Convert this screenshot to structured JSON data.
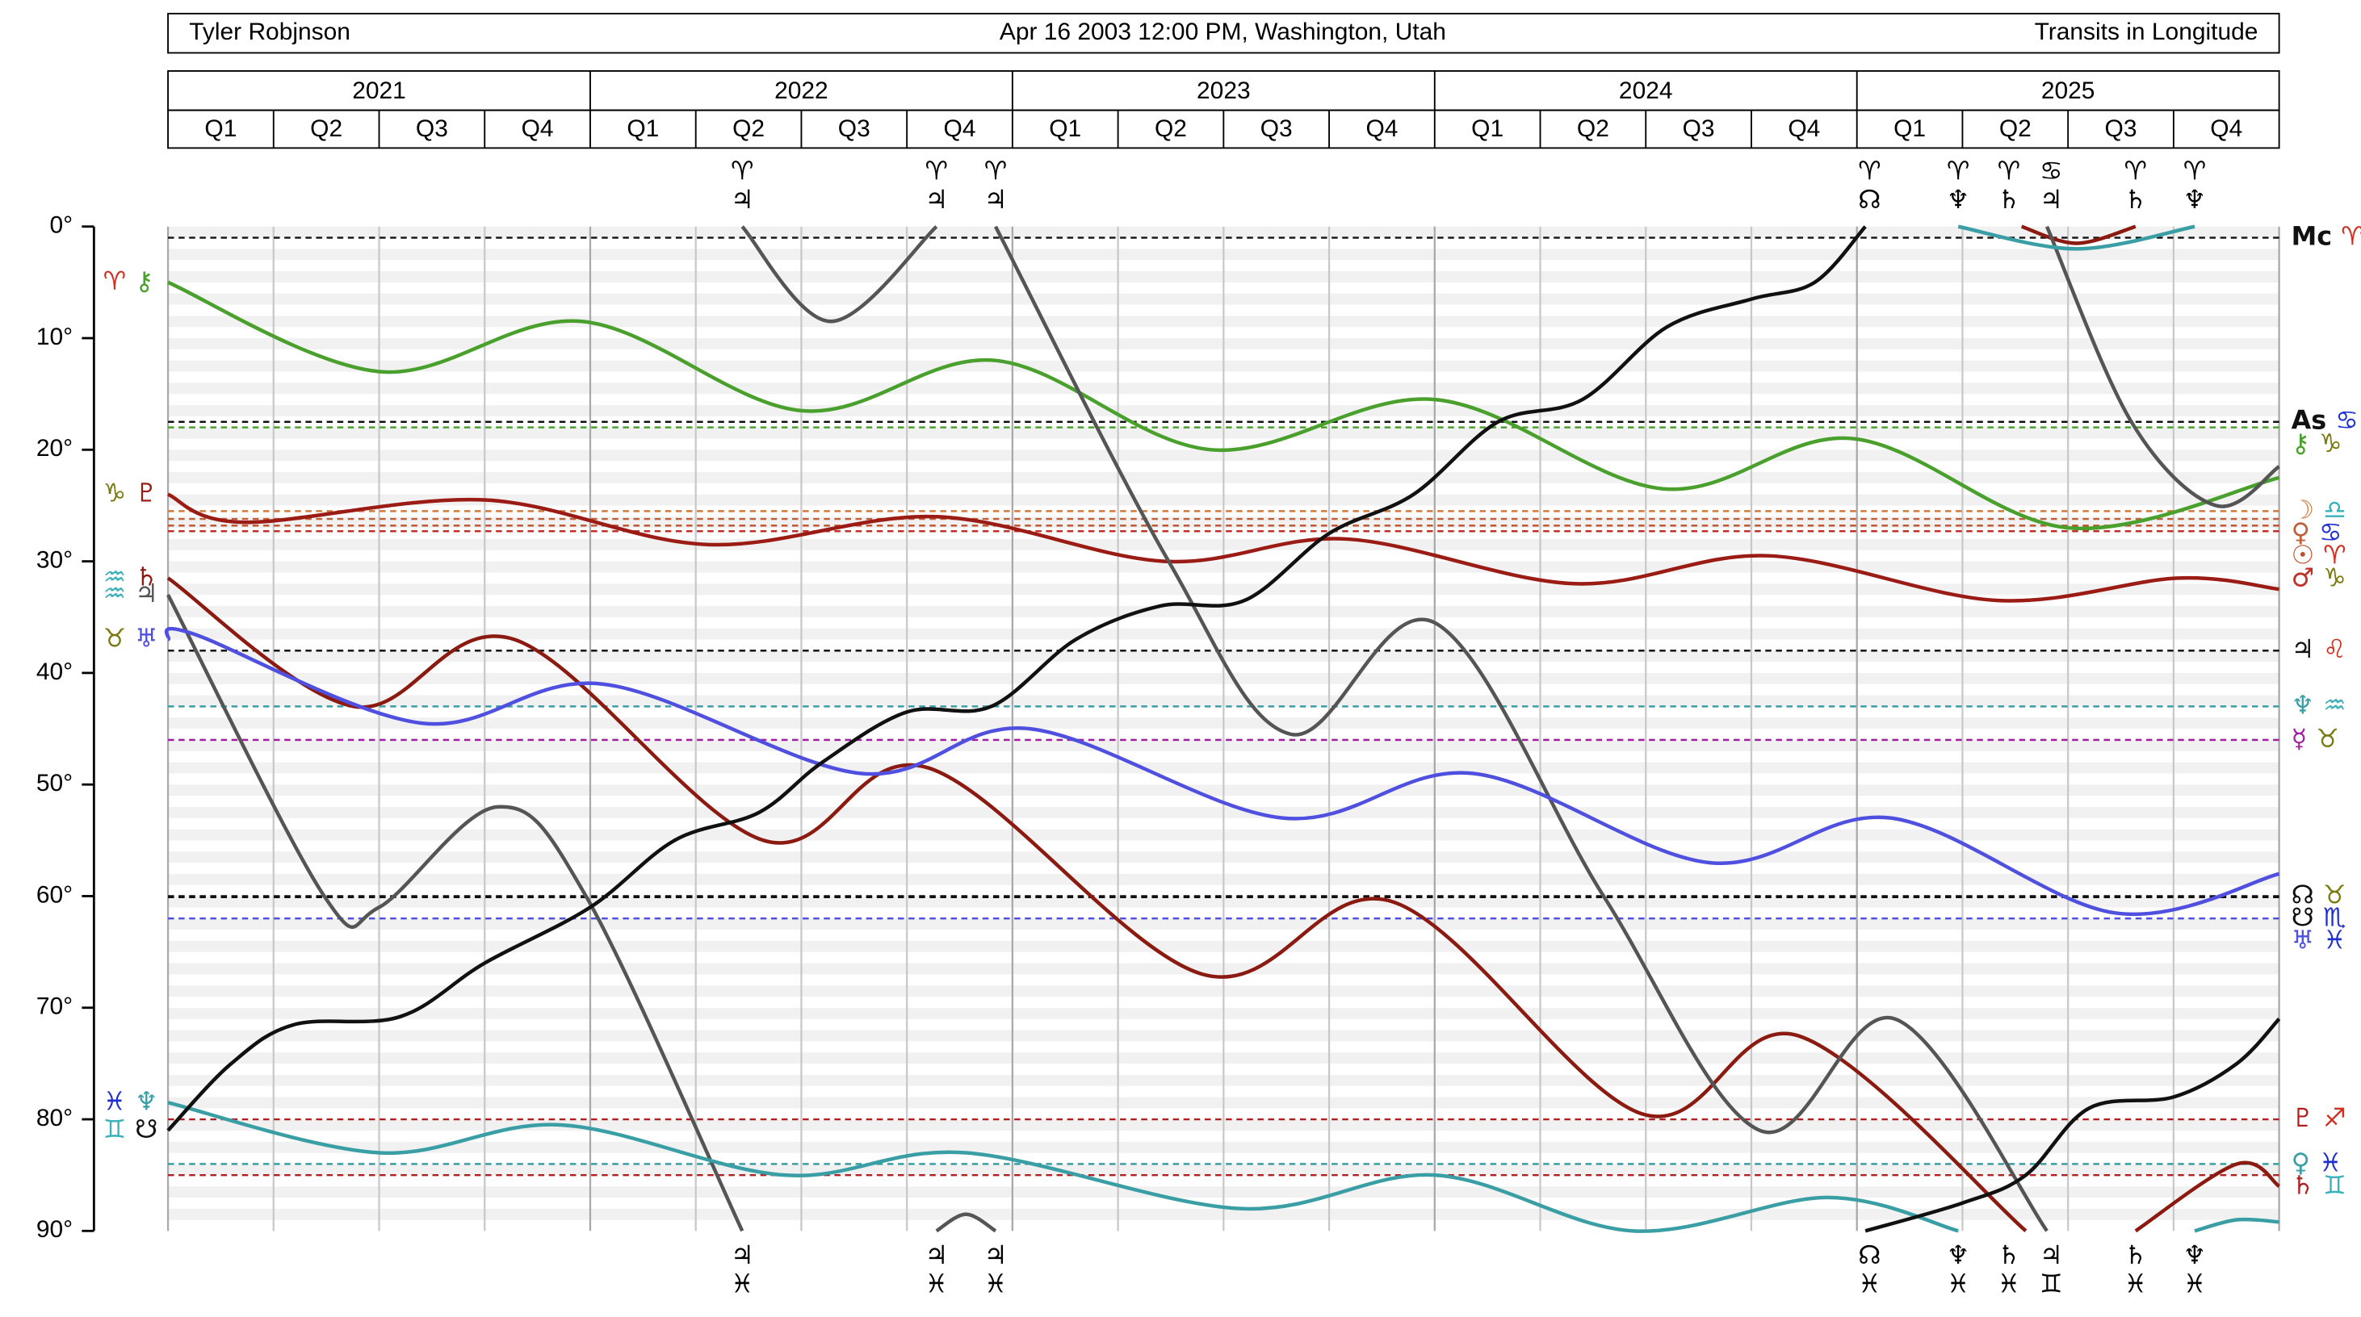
{
  "chart_data": {
    "type": "line",
    "header": {
      "left": "Tyler Robjnson",
      "center": "Apr 16 2003 12:00 PM, Washington, Utah",
      "right": "Transits in Longitude"
    },
    "years": [
      "2021",
      "2022",
      "2023",
      "2024",
      "2025"
    ],
    "quarters": [
      "Q1",
      "Q2",
      "Q3",
      "Q4",
      "Q1",
      "Q2",
      "Q3",
      "Q4",
      "Q1",
      "Q2",
      "Q3",
      "Q4",
      "Q1",
      "Q2",
      "Q3",
      "Q4",
      "Q1",
      "Q2",
      "Q3",
      "Q4"
    ],
    "xlim": [
      2021,
      2026
    ],
    "ylim": [
      0,
      90
    ],
    "y_inverted": true,
    "yticks": [
      {
        "value": 0,
        "label": "0°"
      },
      {
        "value": 10,
        "label": "10°"
      },
      {
        "value": 20,
        "label": "20°"
      },
      {
        "value": 30,
        "label": "30°"
      },
      {
        "value": 40,
        "label": "40°"
      },
      {
        "value": 50,
        "label": "50°"
      },
      {
        "value": 60,
        "label": "60°"
      },
      {
        "value": 70,
        "label": "70°"
      },
      {
        "value": 80,
        "label": "80°"
      },
      {
        "value": 90,
        "label": "90°"
      }
    ],
    "series": [
      {
        "sign": "♈",
        "body": "⚷",
        "sign_color": "#d03020",
        "color": "#4aa02c",
        "x": [
          2021.0,
          2021.5,
          2021.98,
          2022.5,
          2022.96,
          2023.47,
          2024.0,
          2024.54,
          2024.99,
          2025.5,
          2026.0
        ],
        "values": [
          5,
          13,
          8.5,
          16.5,
          12,
          20,
          15.5,
          23.5,
          19,
          27,
          22.5
        ]
      },
      {
        "sign": "♑",
        "body": "♇",
        "sign_color": "#7a7a10",
        "color": "#9b1c14",
        "x": [
          2021.0,
          2021.18,
          2021.75,
          2022.28,
          2022.82,
          2023.36,
          2023.79,
          2024.33,
          2024.79,
          2025.33,
          2025.76,
          2026.0
        ],
        "values": [
          24,
          26.5,
          24.5,
          28.5,
          26,
          30,
          28,
          32,
          29.5,
          33.5,
          31.5,
          32.5
        ]
      },
      {
        "sign": "♒",
        "body": "♄",
        "sign_color": "#3ab0b8",
        "color": "#8b1a10",
        "x": [
          2021.0,
          2021.44,
          2021.82,
          2022.41,
          2022.8,
          2023.45,
          2023.9,
          2024.49,
          2024.86,
          2025.4,
          null,
          2025.39,
          2025.52,
          2025.66,
          null,
          2025.66,
          2025.9,
          2026.0
        ],
        "values": [
          31.5,
          43,
          37,
          55,
          48.5,
          67,
          60.5,
          79.5,
          72.5,
          90,
          null,
          0,
          1.5,
          0,
          null,
          90,
          84,
          86
        ]
      },
      {
        "sign": "♒",
        "body": "♃",
        "sign_color": "#3ab0b8",
        "color": "#555555",
        "x": [
          2021.0,
          2021.37,
          2021.5,
          2021.78,
          2021.99,
          2022.36,
          null,
          2022.36,
          2022.57,
          2022.82,
          null,
          2022.82,
          2022.89,
          2022.96,
          null,
          2022.96,
          2023.37,
          2023.66,
          2024.0,
          2024.4,
          2024.77,
          2025.09,
          2025.45,
          null,
          2025.45,
          2025.65,
          2025.85,
          2026.0
        ],
        "values": [
          33,
          60,
          61,
          52,
          60,
          90,
          null,
          0,
          8.5,
          0,
          null,
          90,
          88.5,
          90,
          null,
          0,
          30,
          45.5,
          35.5,
          60,
          81,
          71,
          90,
          null,
          0,
          17.5,
          25,
          21.5
        ]
      },
      {
        "sign": "♉",
        "body": "♅",
        "sign_color": "#7a7a10",
        "color": "#5050e0",
        "x": [
          2021.0,
          2021.06,
          2021.6,
          2022.03,
          2022.64,
          2023.04,
          2023.64,
          2024.09,
          2024.65,
          2025.08,
          2025.61,
          2026.0
        ],
        "values": [
          37,
          36.5,
          44.5,
          41,
          49,
          45,
          53,
          49,
          57,
          53,
          61.5,
          58
        ]
      },
      {
        "sign": "♓",
        "body": "♆",
        "sign_color": "#2030d0",
        "color": "#3a9ea5",
        "x": [
          2021.0,
          2021.5,
          2021.93,
          2022.46,
          2022.89,
          2023.54,
          2024.0,
          2024.47,
          2024.93,
          2025.24,
          null,
          2025.24,
          2025.52,
          2025.8,
          null,
          2025.8,
          2025.9,
          2026.0
        ],
        "values": [
          78.5,
          83,
          80.5,
          85,
          83,
          88,
          85,
          90,
          87,
          90,
          null,
          0,
          2,
          0,
          null,
          90,
          89,
          89.2
        ]
      },
      {
        "sign": "♊",
        "body": "☋",
        "sign_color": "#3ab0b8",
        "color": "#111111",
        "x": [
          2021.0,
          2021.15,
          2021.3,
          2021.55,
          2021.75,
          2022.0,
          2022.2,
          2022.4,
          2022.55,
          2022.75,
          2022.95,
          2023.15,
          2023.35,
          2023.55,
          2023.75,
          2023.95,
          2024.15,
          2024.35,
          2024.55,
          2024.75,
          2024.9,
          2025.02,
          null,
          2025.02,
          2025.25,
          2025.4,
          2025.55,
          2025.75,
          2025.9,
          2026.0
        ],
        "values": [
          81,
          75,
          71.5,
          70.8,
          66,
          61,
          55,
          52.5,
          48,
          43.5,
          43,
          37,
          34,
          33.5,
          27.5,
          24,
          17.5,
          15.5,
          9,
          6.5,
          5,
          0,
          null,
          90,
          87.5,
          85,
          79,
          78,
          75,
          71
        ]
      }
    ],
    "reference_lines": [
      {
        "value": 1,
        "body": "Mc",
        "sign": "♈",
        "color": "#111111",
        "sign_color": "#d03020"
      },
      {
        "value": 17.5,
        "body": "As",
        "sign": "♋",
        "color": "#111111",
        "sign_color": "#2030d0"
      },
      {
        "value": 18,
        "body": "⚷",
        "sign": "♑",
        "color": "#4aa02c",
        "sign_color": "#7a7a10"
      },
      {
        "value": 25.5,
        "body": "☽",
        "sign": "♎",
        "color": "#d07a3a",
        "sign_color": "#3ab0b8"
      },
      {
        "value": 26.2,
        "body": "♀",
        "sign": "♋",
        "color": "#c0603a",
        "sign_color": "#2030d0"
      },
      {
        "value": 26.8,
        "body": "☉",
        "sign": "♈",
        "color": "#c0502a",
        "sign_color": "#d03020"
      },
      {
        "value": 27.3,
        "body": "♂",
        "sign": "♑",
        "color": "#c03028",
        "sign_color": "#7a7a10"
      },
      {
        "value": 38,
        "body": "♃",
        "sign": "♌",
        "color": "#111111",
        "sign_color": "#d03020"
      },
      {
        "value": 43,
        "body": "♆",
        "sign": "♒",
        "color": "#3a9ea5",
        "sign_color": "#3ab0b8"
      },
      {
        "value": 46,
        "body": "☿",
        "sign": "♉",
        "color": "#a020a0",
        "sign_color": "#7a7a10"
      },
      {
        "value": 60,
        "body": "☊",
        "sign": "♉",
        "color": "#111111",
        "sign_color": "#7a7a10"
      },
      {
        "value": 60.1,
        "body": "☋",
        "sign": "♏",
        "color": "#111111",
        "sign_color": "#2030d0"
      },
      {
        "value": 62,
        "body": "♅",
        "sign": "♓",
        "color": "#5050e0",
        "sign_color": "#2030d0"
      },
      {
        "value": 80,
        "body": "♇",
        "sign": "♐",
        "color": "#b02020",
        "sign_color": "#d03020"
      },
      {
        "value": 84,
        "body": "♀",
        "sign": "♓",
        "color": "#3a9ea5",
        "sign_color": "#2030d0"
      },
      {
        "value": 85,
        "body": "♄",
        "sign": "♊",
        "color": "#b02020",
        "sign_color": "#3ab0b8"
      }
    ],
    "top_crossings": [
      {
        "x": 2022.36,
        "sign": "♈",
        "body": "♃",
        "sign_color": "#d03020",
        "body_color": "#555555"
      },
      {
        "x": 2022.82,
        "sign": "♈",
        "body": "♃",
        "sign_color": "#d03020",
        "body_color": "#555555"
      },
      {
        "x": 2022.96,
        "sign": "♈",
        "body": "♃",
        "sign_color": "#d03020",
        "body_color": "#555555"
      },
      {
        "x": 2025.03,
        "sign": "♈",
        "body": "☊",
        "sign_color": "#d03020",
        "body_color": "#111111"
      },
      {
        "x": 2025.24,
        "sign": "♈",
        "body": "♆",
        "sign_color": "#d03020",
        "body_color": "#3a9ea5"
      },
      {
        "x": 2025.36,
        "sign": "♈",
        "body": "♄",
        "sign_color": "#d03020",
        "body_color": "#8b1a10"
      },
      {
        "x": 2025.46,
        "sign": "♋",
        "body": "♃",
        "sign_color": "#2030d0",
        "body_color": "#555555"
      },
      {
        "x": 2025.66,
        "sign": "♈",
        "body": "♄",
        "sign_color": "#d03020",
        "body_color": "#8b1a10"
      },
      {
        "x": 2025.8,
        "sign": "♈",
        "body": "♆",
        "sign_color": "#d03020",
        "body_color": "#3a9ea5"
      }
    ],
    "bottom_crossings": [
      {
        "x": 2022.36,
        "body": "♃",
        "sign": "♓",
        "body_color": "#555555",
        "sign_color": "#2030d0"
      },
      {
        "x": 2022.82,
        "body": "♃",
        "sign": "♓",
        "body_color": "#555555",
        "sign_color": "#2030d0"
      },
      {
        "x": 2022.96,
        "body": "♃",
        "sign": "♓",
        "body_color": "#555555",
        "sign_color": "#2030d0"
      },
      {
        "x": 2025.03,
        "body": "☊",
        "sign": "♓",
        "body_color": "#111111",
        "sign_color": "#2030d0"
      },
      {
        "x": 2025.24,
        "body": "♆",
        "sign": "♓",
        "body_color": "#3a9ea5",
        "sign_color": "#2030d0"
      },
      {
        "x": 2025.36,
        "body": "♄",
        "sign": "♓",
        "body_color": "#8b1a10",
        "sign_color": "#2030d0"
      },
      {
        "x": 2025.46,
        "body": "♃",
        "sign": "♊",
        "body_color": "#555555",
        "sign_color": "#3ab0b8"
      },
      {
        "x": 2025.66,
        "body": "♄",
        "sign": "♓",
        "body_color": "#8b1a10",
        "sign_color": "#2030d0"
      },
      {
        "x": 2025.8,
        "body": "♆",
        "sign": "♓",
        "body_color": "#3a9ea5",
        "sign_color": "#2030d0"
      }
    ]
  }
}
